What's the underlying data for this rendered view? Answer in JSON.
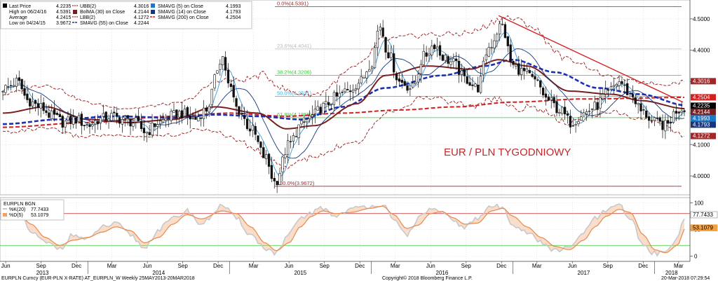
{
  "chart_data": {
    "type": "candlestick",
    "instrument_label": "EURPLN Curncy (EUR-PLN X-RATE) AT_EURPLN_W  Weekly 25MAY2013-20MAR2018",
    "copyright": "Copyright© 2018 Bloomberg Finance L.P.",
    "timestamp": "20-Mar-2018 07:29:54",
    "annotation": "EUR / PLN TYGODNIOWY",
    "price_panel": {
      "ylim": [
        3.94,
        4.56
      ],
      "y_ticks": [
        4.0,
        4.1,
        4.2,
        4.3,
        4.4,
        4.5
      ],
      "y_tick_labels": [
        "4.0000",
        "4.1000",
        "4.2000",
        "4.3000",
        "4.4000",
        "4.5000"
      ],
      "legend": {
        "last_price": {
          "label": "Last Price",
          "value": "4.2235"
        },
        "high": {
          "label": "High on 06/24/16",
          "value": "4.5391"
        },
        "average": {
          "label": "Average",
          "value": "4.2415"
        },
        "low": {
          "label": "Low on 04/24/15",
          "value": "3.9672"
        },
        "ubb": {
          "label": "UBB(2)",
          "value": "4.3016"
        },
        "bolma": {
          "label": "BolMA (30) on Close",
          "value": "4.2144"
        },
        "lbb": {
          "label": "LBB(2)",
          "value": "4.1272"
        },
        "smavg55": {
          "label": "SMAVG (55) on Close",
          "value": "4.2244"
        },
        "smavg5": {
          "label": "SMAVG (5) on Close",
          "value": "4.1993"
        },
        "smavg14": {
          "label": "SMAVG (14) on Close",
          "value": "4.1793"
        },
        "smavg200": {
          "label": "SMAVG (200) on Close",
          "value": "4.2504"
        }
      },
      "price_tags": [
        {
          "value": 4.3016,
          "label": "4.3016",
          "color": "#a0282a"
        },
        {
          "value": 4.2504,
          "label": "4.2504",
          "color": "#d21e1e"
        },
        {
          "value": 4.2235,
          "label": "4.2235",
          "color": "#000000"
        },
        {
          "value": 4.2144,
          "label": "4.2144",
          "color": "#7a1f1f"
        },
        {
          "value": 4.1993,
          "label": "4.1993",
          "color": "#1e78c8"
        },
        {
          "value": 4.1793,
          "label": "4.1793",
          "color": "#17377a"
        },
        {
          "value": 4.1272,
          "label": "4.1272",
          "color": "#a0282a"
        }
      ],
      "fibonacci": [
        {
          "label": "0.0%(4.5391)",
          "value": 4.5391,
          "color": "#a0282a"
        },
        {
          "label": "23.6%(4.4041)",
          "value": 4.4041,
          "color": "#bbbbbb"
        },
        {
          "label": "38.2%(4.3206)",
          "value": 4.3206,
          "color": "#33cc33"
        },
        {
          "label": "50.0%(4.2531)",
          "value": 4.2531,
          "color": "#3ab0e0"
        },
        {
          "label": "61.8%(4.1856)",
          "value": 4.1856,
          "color": "#33cc33"
        },
        {
          "label": "100.0%(3.9672)",
          "value": 3.9672,
          "color": "#a0282a"
        }
      ],
      "trendline": {
        "from": [
          2016.9,
          4.51
        ],
        "to": [
          2018.2,
          4.235
        ],
        "color": "#d22020"
      },
      "close_anchors": [
        [
          2013.42,
          4.28
        ],
        [
          2013.5,
          4.3
        ],
        [
          2013.58,
          4.24
        ],
        [
          2013.66,
          4.22
        ],
        [
          2013.75,
          4.19
        ],
        [
          2013.83,
          4.17
        ],
        [
          2013.92,
          4.18
        ],
        [
          2014.0,
          4.16
        ],
        [
          2014.08,
          4.18
        ],
        [
          2014.16,
          4.19
        ],
        [
          2014.25,
          4.18
        ],
        [
          2014.33,
          4.17
        ],
        [
          2014.41,
          4.14
        ],
        [
          2014.5,
          4.17
        ],
        [
          2014.58,
          4.19
        ],
        [
          2014.66,
          4.2
        ],
        [
          2014.75,
          4.18
        ],
        [
          2014.83,
          4.21
        ],
        [
          2014.95,
          4.38
        ],
        [
          2015.0,
          4.28
        ],
        [
          2015.06,
          4.21
        ],
        [
          2015.15,
          4.15
        ],
        [
          2015.25,
          4.06
        ],
        [
          2015.32,
          3.98
        ],
        [
          2015.42,
          4.1
        ],
        [
          2015.5,
          4.16
        ],
        [
          2015.58,
          4.19
        ],
        [
          2015.66,
          4.22
        ],
        [
          2015.75,
          4.25
        ],
        [
          2015.83,
          4.27
        ],
        [
          2015.92,
          4.3
        ],
        [
          2016.0,
          4.36
        ],
        [
          2016.06,
          4.48
        ],
        [
          2016.12,
          4.39
        ],
        [
          2016.2,
          4.3
        ],
        [
          2016.29,
          4.28
        ],
        [
          2016.37,
          4.38
        ],
        [
          2016.45,
          4.42
        ],
        [
          2016.5,
          4.38
        ],
        [
          2016.58,
          4.36
        ],
        [
          2016.66,
          4.31
        ],
        [
          2016.75,
          4.28
        ],
        [
          2016.83,
          4.41
        ],
        [
          2016.92,
          4.48
        ],
        [
          2017.0,
          4.35
        ],
        [
          2017.08,
          4.33
        ],
        [
          2017.16,
          4.3
        ],
        [
          2017.25,
          4.24
        ],
        [
          2017.33,
          4.21
        ],
        [
          2017.41,
          4.17
        ],
        [
          2017.5,
          4.2
        ],
        [
          2017.58,
          4.22
        ],
        [
          2017.66,
          4.26
        ],
        [
          2017.75,
          4.3
        ],
        [
          2017.83,
          4.26
        ],
        [
          2017.92,
          4.2
        ],
        [
          2018.0,
          4.17
        ],
        [
          2018.08,
          4.16
        ],
        [
          2018.16,
          4.21
        ],
        [
          2018.22,
          4.22
        ]
      ],
      "smavg55_anchors": [
        [
          2013.4,
          4.165
        ],
        [
          2013.8,
          4.18
        ],
        [
          2014.2,
          4.19
        ],
        [
          2014.6,
          4.185
        ],
        [
          2014.9,
          4.195
        ],
        [
          2015.2,
          4.19
        ],
        [
          2015.5,
          4.18
        ],
        [
          2015.8,
          4.22
        ],
        [
          2016.1,
          4.28
        ],
        [
          2016.5,
          4.32
        ],
        [
          2016.8,
          4.35
        ],
        [
          2017.0,
          4.37
        ],
        [
          2017.3,
          4.33
        ],
        [
          2017.6,
          4.28
        ],
        [
          2017.9,
          4.26
        ],
        [
          2018.22,
          4.225
        ]
      ],
      "smavg200_anchors": [
        [
          2013.4,
          4.155
        ],
        [
          2014.0,
          4.17
        ],
        [
          2014.6,
          4.19
        ],
        [
          2015.0,
          4.2
        ],
        [
          2015.4,
          4.19
        ],
        [
          2015.8,
          4.2
        ],
        [
          2016.2,
          4.21
        ],
        [
          2016.6,
          4.22
        ],
        [
          2017.0,
          4.235
        ],
        [
          2017.5,
          4.245
        ],
        [
          2018.22,
          4.25
        ]
      ],
      "bolma_anchors": [
        [
          2013.4,
          4.2
        ],
        [
          2013.7,
          4.22
        ],
        [
          2014.0,
          4.18
        ],
        [
          2014.3,
          4.17
        ],
        [
          2014.6,
          4.18
        ],
        [
          2014.9,
          4.22
        ],
        [
          2015.2,
          4.2
        ],
        [
          2015.4,
          4.15
        ],
        [
          2015.6,
          4.16
        ],
        [
          2015.9,
          4.23
        ],
        [
          2016.1,
          4.32
        ],
        [
          2016.4,
          4.35
        ],
        [
          2016.7,
          4.34
        ],
        [
          2016.9,
          4.37
        ],
        [
          2017.1,
          4.35
        ],
        [
          2017.4,
          4.27
        ],
        [
          2017.7,
          4.26
        ],
        [
          2017.9,
          4.24
        ],
        [
          2018.22,
          4.214
        ]
      ],
      "bb_width_anchors": [
        [
          2013.4,
          0.06
        ],
        [
          2013.7,
          0.07
        ],
        [
          2014.2,
          0.045
        ],
        [
          2014.7,
          0.05
        ],
        [
          2015.0,
          0.09
        ],
        [
          2015.3,
          0.13
        ],
        [
          2015.6,
          0.1
        ],
        [
          2016.0,
          0.12
        ],
        [
          2016.4,
          0.1
        ],
        [
          2016.8,
          0.12
        ],
        [
          2017.0,
          0.14
        ],
        [
          2017.4,
          0.1
        ],
        [
          2017.7,
          0.055
        ],
        [
          2018.0,
          0.06
        ],
        [
          2018.22,
          0.087
        ]
      ]
    },
    "stochastic_panel": {
      "title": "EURPLN BGN",
      "k_label": "%K(20)",
      "k_value": "77.7433",
      "d_label": "%D(5)",
      "d_value": "53.1079",
      "ylim": [
        -10,
        110
      ],
      "y_ticks": [
        0,
        50,
        100
      ],
      "y_tick_labels": [
        "0",
        "50",
        "100"
      ],
      "upper_band": 80,
      "lower_band": 20,
      "k_anchors": [
        [
          2013.4,
          80
        ],
        [
          2013.5,
          90
        ],
        [
          2013.6,
          45
        ],
        [
          2013.7,
          25
        ],
        [
          2013.8,
          15
        ],
        [
          2013.9,
          40
        ],
        [
          2014.0,
          30
        ],
        [
          2014.1,
          55
        ],
        [
          2014.2,
          60
        ],
        [
          2014.3,
          40
        ],
        [
          2014.4,
          15
        ],
        [
          2014.5,
          50
        ],
        [
          2014.6,
          70
        ],
        [
          2014.7,
          85
        ],
        [
          2014.8,
          60
        ],
        [
          2014.95,
          95
        ],
        [
          2015.05,
          70
        ],
        [
          2015.15,
          40
        ],
        [
          2015.25,
          15
        ],
        [
          2015.33,
          5
        ],
        [
          2015.42,
          40
        ],
        [
          2015.5,
          70
        ],
        [
          2015.58,
          82
        ],
        [
          2015.66,
          90
        ],
        [
          2015.75,
          75
        ],
        [
          2015.85,
          88
        ],
        [
          2016.0,
          95
        ],
        [
          2016.08,
          98
        ],
        [
          2016.16,
          65
        ],
        [
          2016.25,
          40
        ],
        [
          2016.33,
          70
        ],
        [
          2016.42,
          90
        ],
        [
          2016.5,
          80
        ],
        [
          2016.58,
          65
        ],
        [
          2016.66,
          55
        ],
        [
          2016.75,
          70
        ],
        [
          2016.85,
          95
        ],
        [
          2016.93,
          90
        ],
        [
          2017.0,
          60
        ],
        [
          2017.1,
          45
        ],
        [
          2017.2,
          25
        ],
        [
          2017.3,
          10
        ],
        [
          2017.4,
          15
        ],
        [
          2017.5,
          45
        ],
        [
          2017.58,
          70
        ],
        [
          2017.66,
          85
        ],
        [
          2017.75,
          95
        ],
        [
          2017.83,
          70
        ],
        [
          2017.92,
          20
        ],
        [
          2018.0,
          5
        ],
        [
          2018.08,
          8
        ],
        [
          2018.16,
          35
        ],
        [
          2018.22,
          77.7
        ]
      ],
      "d_anchors": [
        [
          2013.4,
          70
        ],
        [
          2013.5,
          85
        ],
        [
          2013.6,
          60
        ],
        [
          2013.7,
          35
        ],
        [
          2013.8,
          20
        ],
        [
          2013.9,
          30
        ],
        [
          2014.0,
          35
        ],
        [
          2014.1,
          45
        ],
        [
          2014.2,
          55
        ],
        [
          2014.3,
          48
        ],
        [
          2014.4,
          25
        ],
        [
          2014.5,
          35
        ],
        [
          2014.6,
          60
        ],
        [
          2014.7,
          78
        ],
        [
          2014.8,
          70
        ],
        [
          2014.95,
          85
        ],
        [
          2015.05,
          80
        ],
        [
          2015.15,
          55
        ],
        [
          2015.25,
          25
        ],
        [
          2015.33,
          10
        ],
        [
          2015.42,
          25
        ],
        [
          2015.5,
          55
        ],
        [
          2015.58,
          75
        ],
        [
          2015.66,
          85
        ],
        [
          2015.75,
          80
        ],
        [
          2015.85,
          82
        ],
        [
          2016.0,
          90
        ],
        [
          2016.08,
          94
        ],
        [
          2016.16,
          78
        ],
        [
          2016.25,
          52
        ],
        [
          2016.33,
          58
        ],
        [
          2016.42,
          80
        ],
        [
          2016.5,
          84
        ],
        [
          2016.58,
          72
        ],
        [
          2016.66,
          60
        ],
        [
          2016.75,
          62
        ],
        [
          2016.85,
          85
        ],
        [
          2016.93,
          90
        ],
        [
          2017.0,
          75
        ],
        [
          2017.1,
          55
        ],
        [
          2017.2,
          35
        ],
        [
          2017.3,
          18
        ],
        [
          2017.4,
          12
        ],
        [
          2017.5,
          30
        ],
        [
          2017.58,
          55
        ],
        [
          2017.66,
          75
        ],
        [
          2017.75,
          88
        ],
        [
          2017.83,
          82
        ],
        [
          2017.92,
          40
        ],
        [
          2018.0,
          12
        ],
        [
          2018.08,
          6
        ],
        [
          2018.16,
          20
        ],
        [
          2018.22,
          53.1
        ]
      ]
    },
    "x_axis": {
      "xlim": [
        2013.38,
        2018.25
      ],
      "month_ticks": [
        {
          "label": "Jun",
          "x": 2013.42
        },
        {
          "label": "Sep",
          "x": 2013.67
        },
        {
          "label": "Dec",
          "x": 2013.92
        },
        {
          "label": "Mar",
          "x": 2014.17
        },
        {
          "label": "Jun",
          "x": 2014.42
        },
        {
          "label": "Sep",
          "x": 2014.67
        },
        {
          "label": "Dec",
          "x": 2014.92
        },
        {
          "label": "Mar",
          "x": 2015.17
        },
        {
          "label": "Jun",
          "x": 2015.42
        },
        {
          "label": "Sep",
          "x": 2015.67
        },
        {
          "label": "Dec",
          "x": 2015.92
        },
        {
          "label": "Mar",
          "x": 2016.17
        },
        {
          "label": "Jun",
          "x": 2016.42
        },
        {
          "label": "Sep",
          "x": 2016.67
        },
        {
          "label": "Dec",
          "x": 2016.92
        },
        {
          "label": "Mar",
          "x": 2017.17
        },
        {
          "label": "Jun",
          "x": 2017.42
        },
        {
          "label": "Sep",
          "x": 2017.67
        },
        {
          "label": "Dec",
          "x": 2017.92
        },
        {
          "label": "Mar",
          "x": 2018.17
        }
      ],
      "year_labels": [
        {
          "label": "2013",
          "x": 2013.68
        },
        {
          "label": "2014",
          "x": 2014.5
        },
        {
          "label": "2015",
          "x": 2015.5
        },
        {
          "label": "2016",
          "x": 2016.5
        },
        {
          "label": "2017",
          "x": 2017.5
        },
        {
          "label": "2018",
          "x": 2018.12
        }
      ],
      "year_separators": [
        2014.0,
        2015.0,
        2016.0,
        2017.0,
        2018.0
      ]
    }
  }
}
